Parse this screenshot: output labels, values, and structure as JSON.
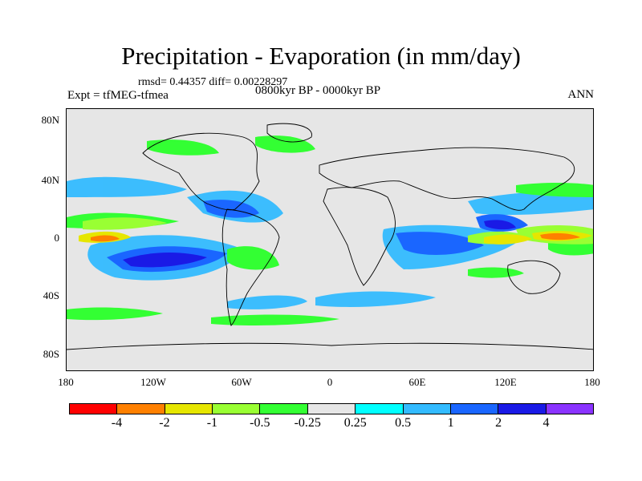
{
  "title": "Precipitation - Evaporation (in mm/day)",
  "stats": "rmsd= 0.44357  diff= 0.00228297",
  "experiment": "Expt = tfMEG-tfmea",
  "period": "0800kyr BP - 0000kyr BP",
  "season": "ANN",
  "y_axis_labels": [
    "80N",
    "40N",
    "0",
    "40S",
    "80S"
  ],
  "x_axis_labels": [
    "180",
    "120W",
    "60W",
    "0",
    "60E",
    "120E",
    "180"
  ],
  "colorbar": {
    "colors": [
      "#ff0000",
      "#ff8000",
      "#e6e600",
      "#99ff33",
      "#33ff33",
      "#e6e6e6",
      "#00ffff",
      "#33bbff",
      "#1a66ff",
      "#1a1ae6",
      "#8a33ff"
    ],
    "labels": [
      "-4",
      "-2",
      "-1",
      "-0.5",
      "-0.25",
      "0.25",
      "0.5",
      "1",
      "2",
      "4"
    ]
  }
}
